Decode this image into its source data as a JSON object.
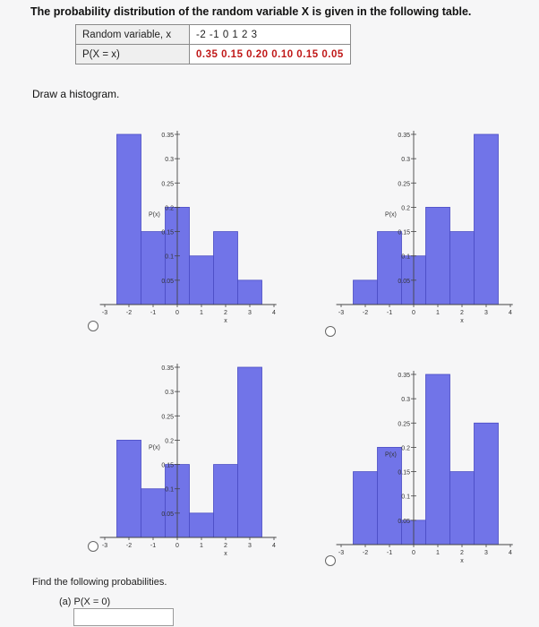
{
  "question": {
    "title": "The probability distribution of the random variable X is given in the following table.",
    "table": {
      "row1_label": "Random variable, x",
      "row2_label": "P(X = x)",
      "x_values": "-2   -1   0   1   2   3",
      "p_values": "0.35  0.15  0.20  0.10  0.15  0.05"
    },
    "draw_prompt": "Draw a histogram.",
    "find_prompt": "Find the following probabilities.",
    "part_a_label": "(a)   P(X = 0)",
    "answer_value": ""
  },
  "chart_data": [
    {
      "type": "bar",
      "option": 1,
      "categories": [
        "-2",
        "-1",
        "0",
        "1",
        "2",
        "3"
      ],
      "values": [
        0.35,
        0.15,
        0.2,
        0.1,
        0.15,
        0.05
      ],
      "xlabel": "x",
      "ylabel": "P(x)",
      "ylim": [
        0,
        0.35
      ],
      "xticks": [
        "-3",
        "-2",
        "-1",
        "0",
        "1",
        "2",
        "3",
        "4"
      ],
      "yticks": [
        "0.05",
        "0.1",
        "0.15",
        "0.2",
        "0.25",
        "0.3",
        "0.35"
      ]
    },
    {
      "type": "bar",
      "option": 2,
      "categories": [
        "-2",
        "-1",
        "0",
        "1",
        "2",
        "3"
      ],
      "values": [
        0.05,
        0.15,
        0.1,
        0.2,
        0.15,
        0.35
      ],
      "xlabel": "x",
      "ylabel": "P(x)",
      "ylim": [
        0,
        0.35
      ],
      "xticks": [
        "-3",
        "-2",
        "-1",
        "0",
        "1",
        "2",
        "3",
        "4"
      ],
      "yticks": [
        "0.05",
        "0.1",
        "0.15",
        "0.2",
        "0.25",
        "0.3",
        "0.35"
      ]
    },
    {
      "type": "bar",
      "option": 3,
      "categories": [
        "-2",
        "-1",
        "0",
        "1",
        "2",
        "3"
      ],
      "values": [
        0.2,
        0.1,
        0.15,
        0.05,
        0.15,
        0.35
      ],
      "xlabel": "x",
      "ylabel": "P(x)",
      "ylim": [
        0,
        0.35
      ],
      "xticks": [
        "-3",
        "-2",
        "-1",
        "0",
        "1",
        "2",
        "3",
        "4"
      ],
      "yticks": [
        "0.05",
        "0.1",
        "0.15",
        "0.2",
        "0.25",
        "0.3",
        "0.35"
      ]
    },
    {
      "type": "bar",
      "option": 4,
      "categories": [
        "-2",
        "-1",
        "0",
        "1",
        "2",
        "3"
      ],
      "values": [
        0.15,
        0.2,
        0.05,
        0.35,
        0.15,
        0.25
      ],
      "xlabel": "x",
      "ylabel": "P(x)",
      "ylim": [
        0,
        0.35
      ],
      "xticks": [
        "-3",
        "-2",
        "-1",
        "0",
        "1",
        "2",
        "3",
        "4"
      ],
      "yticks": [
        "0.05",
        "0.1",
        "0.15",
        "0.2",
        "0.25",
        "0.3",
        "0.35"
      ]
    }
  ],
  "colors": {
    "bar_fill": "#7174e8",
    "bar_stroke": "#4a4cc4",
    "axis": "#444444",
    "value_text": "#c01818"
  }
}
